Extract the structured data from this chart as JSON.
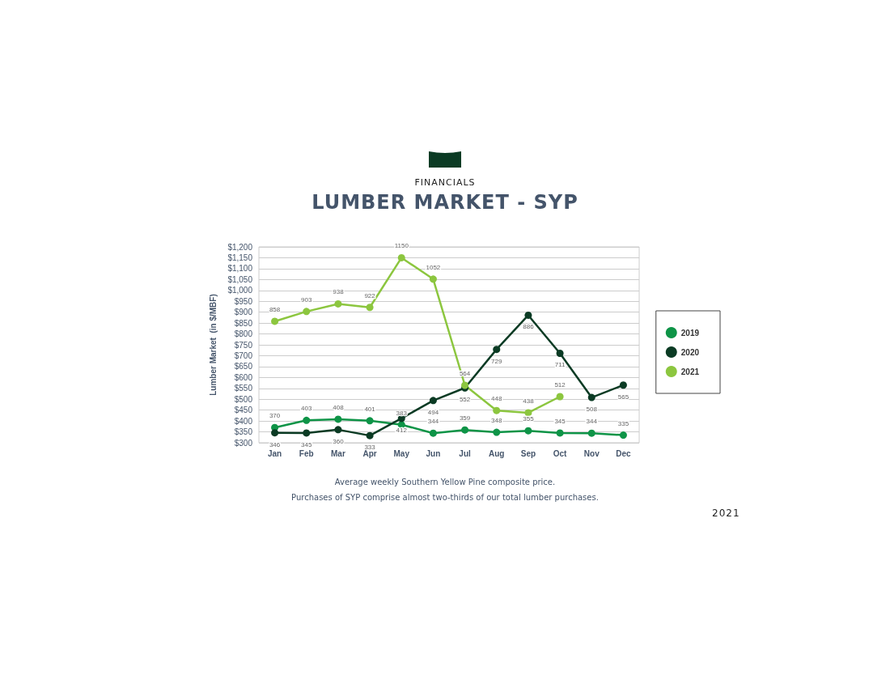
{
  "chart_data": {
    "type": "line",
    "subtitle": "FINANCIALS",
    "title": "LUMBER MARKET - SYP",
    "ylabel": "Lumber Market  (in $/MBF)",
    "categories": [
      "Jan",
      "Feb",
      "Mar",
      "Apr",
      "May",
      "Jun",
      "Jul",
      "Aug",
      "Sep",
      "Oct",
      "Nov",
      "Dec"
    ],
    "series": [
      {
        "name": "2019",
        "color": "#0e9447",
        "values": [
          370,
          403,
          408,
          401,
          383,
          344,
          359,
          348,
          355,
          345,
          344,
          335
        ]
      },
      {
        "name": "2020",
        "color": "#0b3b24",
        "values": [
          346,
          345,
          360,
          333,
          412,
          494,
          552,
          729,
          886,
          711,
          508,
          565
        ]
      },
      {
        "name": "2021",
        "color": "#8cc63f",
        "values": [
          858,
          903,
          938,
          922,
          1150,
          1052,
          564,
          448,
          438,
          512,
          null,
          null
        ]
      }
    ],
    "ylim": [
      300,
      1200
    ],
    "yticks": [
      {
        "value": 300,
        "label": "$300"
      },
      {
        "value": 350,
        "label": "$350"
      },
      {
        "value": 400,
        "label": "$400"
      },
      {
        "value": 450,
        "label": "$450"
      },
      {
        "value": 500,
        "label": "$500"
      },
      {
        "value": 550,
        "label": "$550"
      },
      {
        "value": 600,
        "label": "$600"
      },
      {
        "value": 650,
        "label": "$650"
      },
      {
        "value": 700,
        "label": "$700"
      },
      {
        "value": 750,
        "label": "$750"
      },
      {
        "value": 800,
        "label": "$800"
      },
      {
        "value": 850,
        "label": "$850"
      },
      {
        "value": 900,
        "label": "$900"
      },
      {
        "value": 950,
        "label": "$950"
      },
      {
        "value": 1000,
        "label": "$1,000"
      },
      {
        "value": 1050,
        "label": "$1,050"
      },
      {
        "value": 1100,
        "label": "$1,100"
      },
      {
        "value": 1150,
        "label": "$1,150"
      },
      {
        "value": 1200,
        "label": "$1,200"
      }
    ],
    "grid": "y",
    "legend": "right",
    "marker": "circle",
    "line_style": "solid",
    "data_labels": true,
    "annotations": [
      "Average weekly Southern Yellow Pine composite price.",
      "Purchases of SYP comprise almost two-thirds of our total lumber purchases.",
      "2021"
    ]
  }
}
